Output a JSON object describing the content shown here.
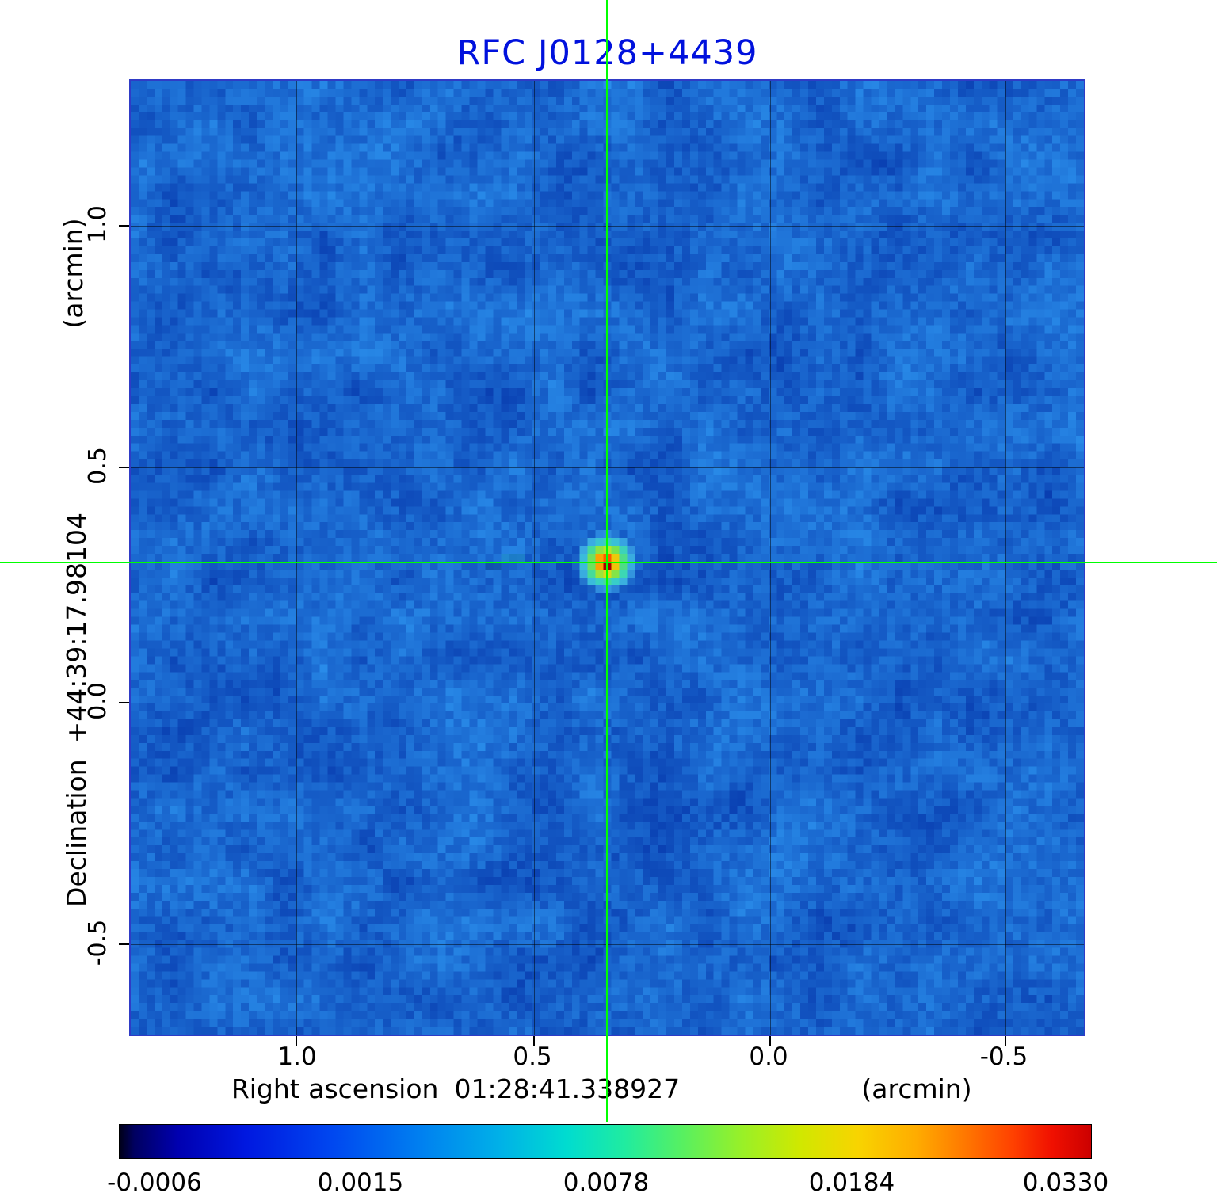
{
  "figure": {
    "title": "RFC J0128+4439"
  },
  "chart_data": {
    "type": "heatmap",
    "title": "RFC J0128+4439",
    "description": "VLBI radio continuum intensity map of source RFC J0128+4439 with green crosshair marking the peak position",
    "x_axis": {
      "label": "Right ascension",
      "coordinate": "01:28:41.338927",
      "unit": "(arcmin)",
      "tick_labels": [
        "1.0",
        "0.5",
        "0.0",
        "-0.5"
      ],
      "tick_values": [
        1.0,
        0.5,
        0.0,
        -0.5
      ],
      "range": [
        1.35,
        -0.85
      ]
    },
    "y_axis": {
      "label": "Declination",
      "coordinate": "+44:39:17.98104",
      "unit": "(arcmin)",
      "tick_labels": [
        "1.0",
        "0.5",
        "0.0",
        "-0.5"
      ],
      "tick_values": [
        1.0,
        0.5,
        0.0,
        -0.5
      ],
      "range": [
        -0.72,
        1.3
      ]
    },
    "colorbar": {
      "tick_labels": [
        "-0.0006",
        "0.0015",
        "0.0078",
        "0.0184",
        "0.0330"
      ],
      "tick_values": [
        -0.0006,
        0.0015,
        0.0078,
        0.0184,
        0.033
      ],
      "scale": "nonlinear",
      "colormap": "rainbow"
    },
    "source": {
      "name": "RFC J0128+4439",
      "peak_offset_arcmin": {
        "ra": 0.34,
        "dec": 0.3
      },
      "peak_value": 0.033,
      "canvas_pos": [
        0.499,
        0.505
      ]
    },
    "crosshair": {
      "x_fraction": 0.499,
      "y_fraction": 0.505
    },
    "colors": {
      "title": "#0011dd",
      "crosshair": "#00ff00",
      "frame": "#2f3bc6",
      "grid": "rgba(0,0,0,0.5)",
      "noise_dark": [
        8,
        60,
        175
      ],
      "noise_light": [
        42,
        142,
        235
      ],
      "source_layers": [
        {
          "r": 3.6,
          "color": "#3fa8e8"
        },
        {
          "r": 2.9,
          "color": "#35d8c8"
        },
        {
          "r": 2.3,
          "color": "#5ce05a"
        },
        {
          "r": 1.8,
          "color": "#c8ec28"
        },
        {
          "r": 1.45,
          "color": "#ffd800"
        },
        {
          "r": 1.1,
          "color": "#ff9000"
        },
        {
          "r": 0.78,
          "color": "#ff3800"
        }
      ],
      "source_core": "#aa0000"
    }
  }
}
